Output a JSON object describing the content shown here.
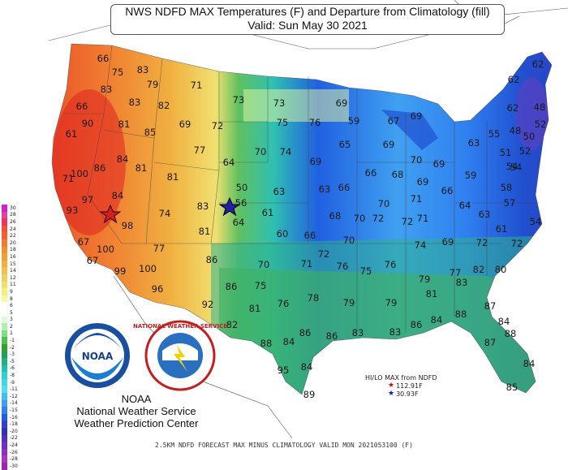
{
  "title": {
    "line1": "NWS NDFD MAX Temperatures (F) and Departure from Climatology (fill)",
    "line2": "Valid: Sun May 30 2021"
  },
  "agency": {
    "logo_text": "NOAA",
    "line1": "NOAA",
    "line2": "National Weather Service",
    "line3": "Weather Prediction Center",
    "seal_text": "NATIONAL WEATHER SERVICE"
  },
  "hilo": {
    "title": "HI/LO MAX from NDFD",
    "hi": "112.91F",
    "lo": "30.93F",
    "hi_color": "#c01010",
    "lo_color": "#1a1aa0"
  },
  "legend": {
    "values": [
      "30",
      "28",
      "26",
      "24",
      "22",
      "20",
      "18",
      "16",
      "15",
      "14",
      "12",
      "11",
      "9",
      "8",
      "6",
      "5",
      "3",
      "2",
      "1",
      "-1",
      "-2",
      "-3",
      "-5",
      "-6",
      "-8",
      "-9",
      "-11",
      "-12",
      "-14",
      "-15",
      "-16",
      "-18",
      "-20",
      "-22",
      "-24",
      "-26",
      "-28",
      "-30"
    ],
    "colors": [
      "#d020d0",
      "#e040a0",
      "#f03060",
      "#f05040",
      "#f06030",
      "#f07a30",
      "#f09030",
      "#f0a030",
      "#f0b040",
      "#f0c050",
      "#f0d060",
      "#f0e070",
      "#f0f080",
      "#f8f8a0",
      "#ffffff",
      "#ffffff",
      "#e0f8e0",
      "#b0f0b0",
      "#80e080",
      "#50c050",
      "#30a030",
      "#20a050",
      "#20b080",
      "#20c0b0",
      "#30d0d0",
      "#40d8e0",
      "#50e0f0",
      "#40c0f0",
      "#40a0f0",
      "#3080f0",
      "#2060e0",
      "#3040d0",
      "#3030b0",
      "#5030c0",
      "#7030c0",
      "#9030c0",
      "#b030c0",
      "#a020b0"
    ]
  },
  "footer": "2.5KM NDFD FORECAST MAX MINUS CLIMATOLOGY VALID MON 2021053100 (F)",
  "temps": [
    [
      "66",
      127,
      72
    ],
    [
      "83",
      176,
      86
    ],
    [
      "75",
      145,
      89
    ],
    [
      "71",
      242,
      105
    ],
    [
      "83",
      131,
      110
    ],
    [
      "79",
      188,
      104
    ],
    [
      "66",
      101,
      131
    ],
    [
      "83",
      166,
      126
    ],
    [
      "82",
      202,
      130
    ],
    [
      "73",
      294,
      123
    ],
    [
      "73",
      344,
      127
    ],
    [
      "69",
      421,
      127
    ],
    [
      "90",
      108,
      152
    ],
    [
      "81",
      153,
      153
    ],
    [
      "85",
      185,
      163
    ],
    [
      "69",
      228,
      153
    ],
    [
      "72",
      268,
      155
    ],
    [
      "75",
      348,
      151
    ],
    [
      "76",
      388,
      151
    ],
    [
      "59",
      436,
      149
    ],
    [
      "67",
      485,
      149
    ],
    [
      "69",
      513,
      143
    ],
    [
      "62",
      663,
      79
    ],
    [
      "62",
      633,
      98
    ],
    [
      "48",
      665,
      132
    ],
    [
      "62",
      632,
      133
    ],
    [
      "61",
      88,
      165
    ],
    [
      "77",
      246,
      185
    ],
    [
      "70",
      321,
      187
    ],
    [
      "74",
      352,
      187
    ],
    [
      "69",
      389,
      199
    ],
    [
      "65",
      425,
      178
    ],
    [
      "69",
      479,
      178
    ],
    [
      "55",
      609,
      165
    ],
    [
      "63",
      584,
      176
    ],
    [
      "48",
      635,
      161
    ],
    [
      "50",
      652,
      168
    ],
    [
      "52",
      666,
      153
    ],
    [
      "71",
      84,
      220
    ],
    [
      "100",
      98,
      214
    ],
    [
      "86",
      123,
      207
    ],
    [
      "84",
      151,
      196
    ],
    [
      "81",
      174,
      207
    ],
    [
      "64",
      282,
      200
    ],
    [
      "66",
      457,
      213
    ],
    [
      "68",
      490,
      215
    ],
    [
      "70",
      513,
      197
    ],
    [
      "69",
      541,
      202
    ],
    [
      "51",
      623,
      188
    ],
    [
      "52",
      647,
      186
    ],
    [
      "84",
      145,
      241
    ],
    [
      "97",
      108,
      246
    ],
    [
      "81",
      213,
      218
    ],
    [
      "50",
      298,
      231
    ],
    [
      "63",
      344,
      236
    ],
    [
      "63",
      400,
      233
    ],
    [
      "66",
      424,
      231
    ],
    [
      "69",
      521,
      224
    ],
    [
      "59",
      580,
      216
    ],
    [
      "54",
      631,
      205
    ],
    [
      "54",
      636,
      206
    ],
    [
      "93",
      89,
      259
    ],
    [
      "56",
      297,
      250
    ],
    [
      "61",
      330,
      262
    ],
    [
      "74",
      203,
      263
    ],
    [
      "83",
      250,
      254
    ],
    [
      "70",
      473,
      251
    ],
    [
      "71",
      513,
      245
    ],
    [
      "66",
      551,
      235
    ],
    [
      "64",
      573,
      253
    ],
    [
      "58",
      624,
      231
    ],
    [
      "57",
      628,
      250
    ],
    [
      "98",
      157,
      278
    ],
    [
      "64",
      294,
      274
    ],
    [
      "68",
      413,
      266
    ],
    [
      "70",
      443,
      269
    ],
    [
      "72",
      466,
      269
    ],
    [
      "72",
      502,
      273
    ],
    [
      "71",
      521,
      269
    ],
    [
      "63",
      597,
      264
    ],
    [
      "54",
      660,
      273
    ],
    [
      "67",
      103,
      298
    ],
    [
      "100",
      130,
      307
    ],
    [
      "77",
      196,
      306
    ],
    [
      "81",
      252,
      285
    ],
    [
      "60",
      348,
      288
    ],
    [
      "66",
      382,
      290
    ],
    [
      "70",
      430,
      296
    ],
    [
      "61",
      618,
      282
    ],
    [
      "72",
      637,
      300
    ],
    [
      "67",
      114,
      321
    ],
    [
      "99",
      148,
      334
    ],
    [
      "100",
      182,
      331
    ],
    [
      "86",
      261,
      320
    ],
    [
      "70",
      325,
      326
    ],
    [
      "71",
      378,
      325
    ],
    [
      "72",
      399,
      313
    ],
    [
      "76",
      422,
      328
    ],
    [
      "75",
      451,
      334
    ],
    [
      "74",
      518,
      302
    ],
    [
      "69",
      552,
      298
    ],
    [
      "72",
      594,
      299
    ],
    [
      "76",
      481,
      326
    ],
    [
      "96",
      194,
      356
    ],
    [
      "86",
      285,
      353
    ],
    [
      "75",
      321,
      352
    ],
    [
      "77",
      561,
      336
    ],
    [
      "82",
      590,
      332
    ],
    [
      "80",
      617,
      332
    ],
    [
      "79",
      523,
      344
    ],
    [
      "83",
      569,
      348
    ],
    [
      "92",
      256,
      375
    ],
    [
      "81",
      314,
      380
    ],
    [
      "76",
      349,
      374
    ],
    [
      "78",
      386,
      367
    ],
    [
      "79",
      430,
      373
    ],
    [
      "79",
      482,
      373
    ],
    [
      "81",
      532,
      362
    ],
    [
      "87",
      604,
      377
    ],
    [
      "82",
      286,
      400
    ],
    [
      "88",
      568,
      387
    ],
    [
      "84",
      621,
      396
    ],
    [
      "84",
      538,
      394
    ],
    [
      "88",
      629,
      411
    ],
    [
      "87",
      604,
      422
    ],
    [
      "88",
      328,
      423
    ],
    [
      "86",
      376,
      410
    ],
    [
      "84",
      356,
      421
    ],
    [
      "86",
      409,
      414
    ],
    [
      "83",
      441,
      410
    ],
    [
      "83",
      487,
      409
    ],
    [
      "86",
      513,
      400
    ],
    [
      "84",
      652,
      448
    ],
    [
      "95",
      349,
      456
    ],
    [
      "84",
      378,
      452
    ],
    [
      "89",
      381,
      486
    ],
    [
      "85",
      631,
      477
    ]
  ],
  "markers": {
    "hi": {
      "label": "high-star"
    },
    "lo": {
      "label": "low-star"
    }
  }
}
